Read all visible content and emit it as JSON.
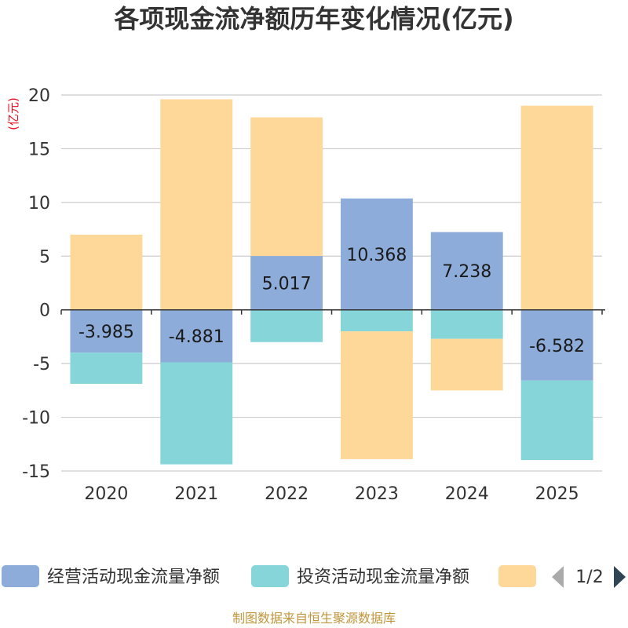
{
  "chart_data": {
    "type": "bar",
    "stacked": true,
    "title": "各项现金流净额历年变化情况(亿元)",
    "ylabel": "(亿元)",
    "xlabel": "",
    "categories": [
      "2020",
      "2021",
      "2022",
      "2023",
      "2024",
      "2025"
    ],
    "ylim": [
      -15,
      20
    ],
    "yticks": [
      20,
      15,
      10,
      5,
      0,
      -5,
      -10,
      -15
    ],
    "series": [
      {
        "name": "经营活动现金流量净额",
        "color": "#8eacd9",
        "values": [
          -3.985,
          -4.881,
          5.017,
          10.368,
          7.238,
          -6.582
        ],
        "labels": [
          "-3.985",
          "-4.881",
          "5.017",
          "10.368",
          "7.238",
          "-6.582"
        ]
      },
      {
        "name": "投资活动现金流量净额",
        "color": "#86d5d8",
        "values": [
          -2.9,
          -9.5,
          -3.0,
          -2.0,
          -2.7,
          -7.4
        ]
      },
      {
        "name": "",
        "color": "#fdd899",
        "values": [
          7.0,
          19.6,
          12.9,
          -11.9,
          -4.8,
          19.0
        ]
      }
    ],
    "legend": {
      "position": "bottom",
      "page": "1/2"
    },
    "grid": true
  },
  "source": "制图数据来自恒生聚源数据库"
}
